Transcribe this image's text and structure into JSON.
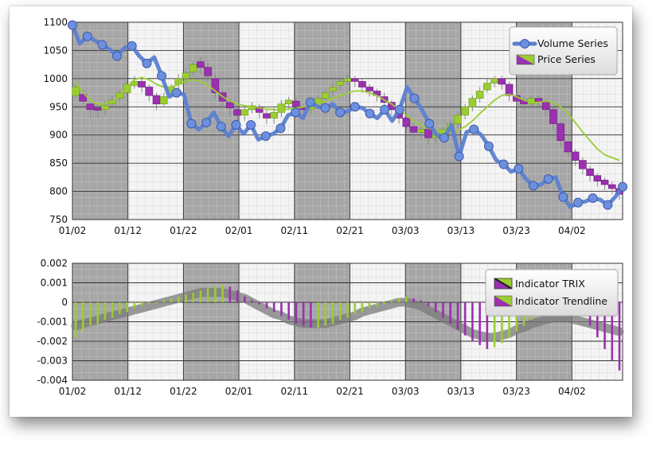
{
  "chart_data": [
    {
      "type": "candlestick",
      "title": "",
      "xlabel": "",
      "ylabel": "",
      "x_tick_labels": [
        "01/02",
        "01/12",
        "01/22",
        "02/01",
        "02/11",
        "02/21",
        "03/03",
        "03/13",
        "03/23",
        "04/02"
      ],
      "y_tick_labels": [
        "1100",
        "1050",
        "1000",
        "950",
        "900",
        "850",
        "800",
        "750"
      ],
      "ylim": [
        750,
        1100
      ],
      "legend": {
        "placement": "top-right",
        "entries": [
          "Volume Series",
          "Price Series"
        ]
      },
      "colors": {
        "volume": "#5b7fd1",
        "price_up": "#9acd32",
        "price_down": "#9b30b0",
        "trend": "#9acd32",
        "band_dark": "#a6a6a6",
        "band_light": "#f4f4f4"
      },
      "volume_series": [
        1095,
        1062,
        1075,
        1068,
        1060,
        1052,
        1040,
        1055,
        1058,
        1040,
        1027,
        1038,
        1005,
        968,
        975,
        972,
        920,
        910,
        922,
        940,
        915,
        898,
        918,
        902,
        918,
        892,
        898,
        902,
        912,
        935,
        940,
        930,
        958,
        950,
        948,
        955,
        940,
        942,
        950,
        948,
        938,
        930,
        945,
        925,
        945,
        985,
        965,
        945,
        920,
        900,
        895,
        918,
        862,
        905,
        910,
        900,
        880,
        855,
        848,
        835,
        840,
        822,
        810,
        812,
        822,
        825,
        790,
        772,
        780,
        782,
        788,
        785,
        776,
        790,
        808
      ],
      "price_series": [
        [
          970,
          985,
          965,
          990
        ],
        [
          972,
          960,
          955,
          980
        ],
        [
          955,
          945,
          930,
          965
        ],
        [
          948,
          945,
          930,
          955
        ],
        [
          945,
          952,
          935,
          960
        ],
        [
          955,
          962,
          950,
          970
        ],
        [
          965,
          975,
          958,
          980
        ],
        [
          975,
          990,
          970,
          995
        ],
        [
          988,
          995,
          982,
          1005
        ],
        [
          995,
          985,
          975,
          1002
        ],
        [
          985,
          970,
          960,
          990
        ],
        [
          970,
          955,
          945,
          975
        ],
        [
          955,
          968,
          950,
          975
        ],
        [
          972,
          985,
          965,
          990
        ],
        [
          990,
          1000,
          982,
          1008
        ],
        [
          1000,
          1010,
          990,
          1018
        ],
        [
          1012,
          1025,
          1005,
          1030
        ],
        [
          1030,
          1020,
          1008,
          1038
        ],
        [
          1020,
          1005,
          995,
          1030
        ],
        [
          1000,
          975,
          965,
          1008
        ],
        [
          975,
          960,
          948,
          980
        ],
        [
          958,
          948,
          935,
          962
        ],
        [
          945,
          935,
          925,
          950
        ],
        [
          935,
          945,
          925,
          952
        ],
        [
          945,
          952,
          938,
          958
        ],
        [
          950,
          940,
          930,
          955
        ],
        [
          938,
          930,
          920,
          945
        ],
        [
          930,
          940,
          920,
          948
        ],
        [
          940,
          955,
          932,
          962
        ],
        [
          955,
          962,
          945,
          968
        ],
        [
          960,
          950,
          940,
          965
        ],
        [
          950,
          945,
          935,
          955
        ],
        [
          945,
          955,
          938,
          960
        ],
        [
          955,
          965,
          948,
          972
        ],
        [
          965,
          975,
          958,
          980
        ],
        [
          978,
          985,
          970,
          992
        ],
        [
          988,
          995,
          980,
          1000
        ],
        [
          995,
          1000,
          988,
          1008
        ],
        [
          1000,
          995,
          985,
          1005
        ],
        [
          995,
          985,
          975,
          1000
        ],
        [
          985,
          978,
          968,
          990
        ],
        [
          978,
          970,
          960,
          982
        ],
        [
          968,
          958,
          948,
          975
        ],
        [
          958,
          945,
          935,
          962
        ],
        [
          945,
          930,
          920,
          952
        ],
        [
          930,
          915,
          905,
          938
        ],
        [
          915,
          905,
          895,
          920
        ],
        [
          905,
          910,
          895,
          918
        ],
        [
          910,
          895,
          885,
          915
        ],
        [
          895,
          900,
          885,
          905
        ],
        [
          900,
          910,
          890,
          915
        ],
        [
          910,
          920,
          900,
          925
        ],
        [
          920,
          935,
          912,
          940
        ],
        [
          935,
          950,
          928,
          955
        ],
        [
          950,
          965,
          942,
          970
        ],
        [
          965,
          978,
          958,
          985
        ],
        [
          980,
          992,
          975,
          1000
        ],
        [
          992,
          1000,
          985,
          1005
        ],
        [
          1000,
          990,
          980,
          1005
        ],
        [
          990,
          970,
          960,
          995
        ],
        [
          970,
          960,
          950,
          975
        ],
        [
          962,
          955,
          945,
          968
        ],
        [
          955,
          965,
          948,
          970
        ],
        [
          965,
          958,
          948,
          970
        ],
        [
          958,
          945,
          935,
          962
        ],
        [
          945,
          920,
          910,
          950
        ],
        [
          920,
          890,
          880,
          925
        ],
        [
          888,
          870,
          860,
          892
        ],
        [
          870,
          855,
          845,
          875
        ],
        [
          855,
          840,
          830,
          860
        ],
        [
          840,
          828,
          818,
          845
        ],
        [
          828,
          818,
          808,
          832
        ],
        [
          820,
          812,
          802,
          825
        ],
        [
          812,
          805,
          795,
          818
        ],
        [
          805,
          795,
          785,
          810
        ]
      ],
      "price_trendline": [
        995,
        975,
        962,
        955,
        955,
        960,
        970,
        985,
        998,
        1002,
        998,
        990,
        985,
        985,
        990,
        995,
        998,
        995,
        988,
        978,
        968,
        960,
        955,
        952,
        950,
        948,
        946,
        945,
        945,
        946,
        948,
        950,
        952,
        955,
        960,
        965,
        970,
        975,
        978,
        978,
        975,
        970,
        962,
        955,
        945,
        935,
        925,
        918,
        912,
        908,
        905,
        905,
        908,
        915,
        925,
        938,
        950,
        962,
        970,
        972,
        968,
        962,
        958,
        958,
        960,
        958,
        950,
        938,
        922,
        905,
        890,
        875,
        865,
        860,
        855
      ]
    },
    {
      "type": "bar",
      "title": "",
      "xlabel": "",
      "ylabel": "",
      "x_tick_labels": [
        "01/02",
        "01/12",
        "01/22",
        "02/01",
        "02/11",
        "02/21",
        "03/03",
        "03/13",
        "03/23",
        "04/02"
      ],
      "y_tick_labels": [
        "0.002",
        "0.001",
        "0",
        "-0.001",
        "-0.002",
        "-0.003",
        "-0.004"
      ],
      "ylim": [
        -0.004,
        0.002
      ],
      "legend": {
        "placement": "top-right",
        "entries": [
          "Indicator TRIX",
          "Indicator Trendline"
        ]
      },
      "trix": [
        -0.0018,
        -0.0015,
        -0.0012,
        -0.0011,
        -0.0009,
        -0.0008,
        -0.0006,
        -0.0005,
        -0.0003,
        -0.0002,
        -0.0001,
        0.0,
        0.0001,
        0.0002,
        0.0003,
        0.0004,
        0.0005,
        0.0006,
        0.0007,
        0.0008,
        0.0009,
        0.0008,
        0.0006,
        0.0003,
        0.0001,
        -0.0001,
        -0.0003,
        -0.0005,
        -0.0007,
        -0.0009,
        -0.0011,
        -0.0012,
        -0.0013,
        -0.0013,
        -0.0012,
        -0.0011,
        -0.0009,
        -0.0008,
        -0.0006,
        -0.0005,
        -0.0003,
        -0.0002,
        -0.0001,
        0.0001,
        0.0002,
        0.0003,
        0.0002,
        0.0001,
        -0.0002,
        -0.0005,
        -0.0008,
        -0.0011,
        -0.0014,
        -0.0017,
        -0.002,
        -0.0022,
        -0.0024,
        -0.0023,
        -0.0021,
        -0.0018,
        -0.0015,
        -0.0012,
        -0.0009,
        -0.0007,
        -0.0005,
        -0.0004,
        -0.0003,
        -0.0004,
        -0.0005,
        -0.0006,
        -0.0012,
        -0.0018,
        -0.0024,
        -0.003,
        -0.0035
      ],
      "trix_trendline": [
        -0.0012,
        -0.0011,
        -0.001,
        -0.0009,
        -0.0008,
        -0.0007,
        -0.0006,
        -0.0005,
        -0.0004,
        -0.0003,
        -0.0002,
        -0.0001,
        0.0,
        0.0001,
        0.0002,
        0.0003,
        0.0004,
        0.0005,
        0.0005,
        0.0005,
        0.0005,
        0.0004,
        0.0003,
        0.0002,
        0.0,
        -0.0002,
        -0.0004,
        -0.0006,
        -0.0007,
        -0.0009,
        -0.001,
        -0.0011,
        -0.0011,
        -0.0011,
        -0.0011,
        -0.001,
        -0.0009,
        -0.0008,
        -0.0007,
        -0.0005,
        -0.0004,
        -0.0003,
        -0.0002,
        -0.0001,
        0.0,
        0.0,
        -0.0001,
        -0.0002,
        -0.0004,
        -0.0006,
        -0.0008,
        -0.001,
        -0.0012,
        -0.0014,
        -0.0016,
        -0.0017,
        -0.0018,
        -0.0018,
        -0.0017,
        -0.0016,
        -0.0014,
        -0.0013,
        -0.0011,
        -0.001,
        -0.0009,
        -0.0008,
        -0.0008,
        -0.0008,
        -0.0009,
        -0.001,
        -0.0011,
        -0.0012,
        -0.0013,
        -0.0014,
        -0.0015
      ]
    }
  ]
}
